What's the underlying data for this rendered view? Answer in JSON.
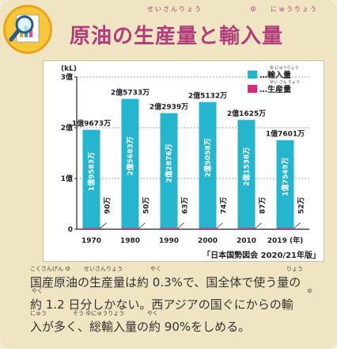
{
  "title": "原油の生産量と輸入量",
  "title_ruby": {
    "seisanryou": "せいさんりょう",
    "yu": "ゆ",
    "nyuuryou": "にゅうりょう"
  },
  "source": "「日本国勢図会 2020/21年版」",
  "body_lines": [
    "国産原油の生産量は約 0.3%で、国全体で使う量の",
    "約 1.2 日分しかない。西アジアの国ぐにからの輸",
    "入が多く、総輸入量の約 90%をしめる。"
  ],
  "body_ruby": {
    "line1": [
      {
        "text": "こくさんげん ゆ"
      },
      {
        "text": "せいさんりょう"
      },
      {
        "text": "やく"
      },
      {
        "text": "りょう"
      }
    ],
    "line2": [
      {
        "text": "やく"
      },
      {
        "text": "ゆ"
      }
    ],
    "line3": [
      {
        "text": "にゅう"
      },
      {
        "text": "そう ゆにゅうりょう"
      },
      {
        "text": "やく"
      }
    ]
  },
  "colors": {
    "import": "#26b5cf",
    "production": "#e0287a",
    "title": "#b23d7a",
    "axis": "#222222"
  },
  "chart_data": {
    "type": "bar",
    "yunit": "(kL)",
    "xunit": "(年)",
    "ylim": [
      0,
      3
    ],
    "yticks": [
      {
        "v": 0,
        "label": "0"
      },
      {
        "v": 1,
        "label": "1億"
      },
      {
        "v": 2,
        "label": "2億"
      },
      {
        "v": 3,
        "label": "3億"
      }
    ],
    "categories": [
      "1970",
      "1980",
      "1990",
      "2000",
      "2010",
      "2019"
    ],
    "category_labels": [
      "1970",
      "1980",
      "1990",
      "2000",
      "2010",
      "2019 (年)"
    ],
    "legend": [
      {
        "name": "輸入量",
        "ruby": "ゆ にゅうりょう",
        "color": "#26b5cf"
      },
      {
        "name": "生産量",
        "ruby": "せい さん りょう",
        "color": "#e0287a"
      }
    ],
    "series": [
      {
        "name": "輸入量",
        "values": [
          1.9583,
          2.5683,
          2.2876,
          2.5058,
          2.1538,
          1.7549
        ]
      },
      {
        "name": "生産量",
        "values": [
          0.009,
          0.005,
          0.0063,
          0.0074,
          0.0087,
          0.0052
        ]
      }
    ],
    "total_labels": [
      "1億9673万",
      "2億5733万",
      "2億2939万",
      "2億5132万",
      "2億1625万",
      "1億7601万"
    ],
    "import_labels": [
      "1億9583万",
      "2億5683万",
      "2億2876万",
      "2億5058万",
      "2億1538万",
      "1億7549万"
    ],
    "production_labels": [
      "90万",
      "50万",
      "63万",
      "74万",
      "87万",
      "52万"
    ]
  }
}
